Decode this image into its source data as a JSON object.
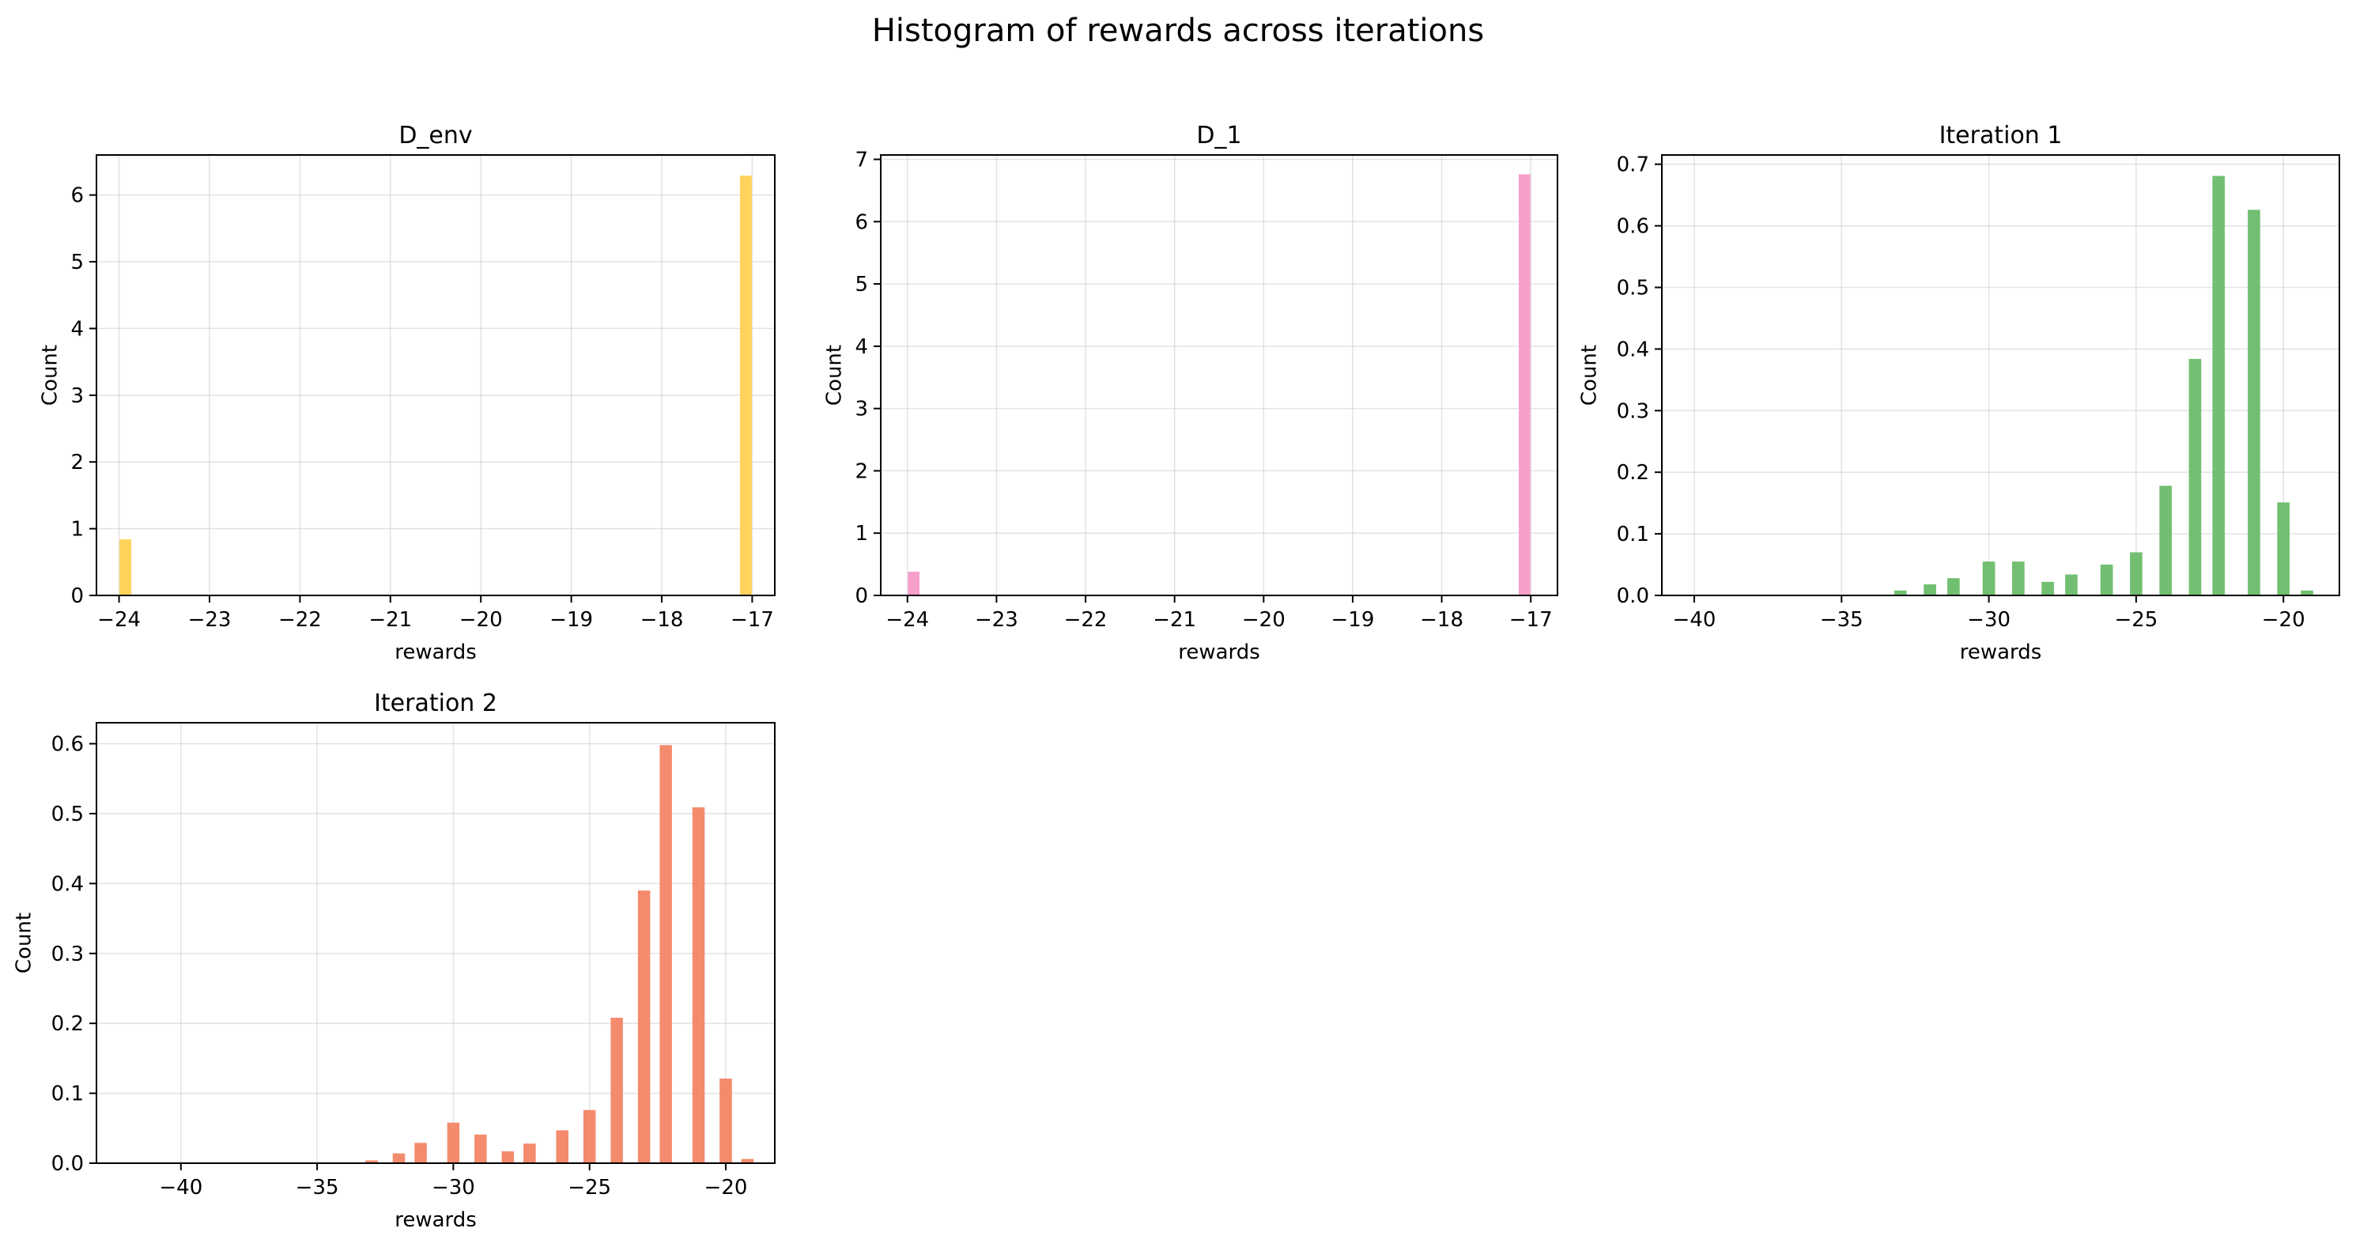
{
  "figure": {
    "suptitle": "Histogram of rewards across iterations"
  },
  "chart_data": [
    {
      "type": "bar",
      "title": "D_env",
      "xlabel": "rewards",
      "ylabel": "Count",
      "color": "#ffd35c",
      "xlim": [
        -24.25,
        -16.75
      ],
      "ylim": [
        0,
        6.6
      ],
      "xticks": [
        -24,
        -23,
        -22,
        -21,
        -20,
        -19,
        -18,
        -17
      ],
      "yticks": [
        0,
        1,
        2,
        3,
        4,
        5,
        6
      ],
      "bar_width": 0.13,
      "grid": true,
      "bars": [
        {
          "x": -23.93,
          "value": 0.84
        },
        {
          "x": -17.07,
          "value": 6.29
        }
      ]
    },
    {
      "type": "bar",
      "title": "D_1",
      "xlabel": "rewards",
      "ylabel": "Count",
      "color": "#f79fcb",
      "xlim": [
        -24.3,
        -16.7
      ],
      "ylim": [
        0,
        7.07
      ],
      "xticks": [
        -24,
        -23,
        -22,
        -21,
        -20,
        -19,
        -18,
        -17
      ],
      "yticks": [
        0,
        1,
        2,
        3,
        4,
        5,
        6,
        7
      ],
      "bar_width": 0.13,
      "grid": true,
      "bars": [
        {
          "x": -23.93,
          "value": 0.38
        },
        {
          "x": -17.07,
          "value": 6.76
        }
      ]
    },
    {
      "type": "bar",
      "title": "Iteration 1",
      "xlabel": "rewards",
      "ylabel": "Count",
      "color": "#72bf72",
      "xlim": [
        -41.1,
        -18.1
      ],
      "ylim": [
        0,
        0.715
      ],
      "xticks": [
        -40,
        -35,
        -30,
        -25,
        -20
      ],
      "yticks": [
        0,
        0.1,
        0.2,
        0.3,
        0.4,
        0.5,
        0.6,
        0.7
      ],
      "ytick_labels": [
        "0.0",
        "0.1",
        "0.2",
        "0.3",
        "0.4",
        "0.5",
        "0.6",
        "0.7"
      ],
      "bar_width": 0.42,
      "grid": true,
      "bars": [
        {
          "x": -33.0,
          "value": 0.008
        },
        {
          "x": -32.0,
          "value": 0.018
        },
        {
          "x": -31.2,
          "value": 0.028
        },
        {
          "x": -30.0,
          "value": 0.055
        },
        {
          "x": -29.0,
          "value": 0.055
        },
        {
          "x": -28.0,
          "value": 0.022
        },
        {
          "x": -27.2,
          "value": 0.034
        },
        {
          "x": -26.0,
          "value": 0.05
        },
        {
          "x": -25.0,
          "value": 0.07
        },
        {
          "x": -24.0,
          "value": 0.178
        },
        {
          "x": -23.0,
          "value": 0.384
        },
        {
          "x": -22.2,
          "value": 0.681
        },
        {
          "x": -21.0,
          "value": 0.626
        },
        {
          "x": -20.0,
          "value": 0.151
        },
        {
          "x": -19.2,
          "value": 0.008
        }
      ]
    },
    {
      "type": "bar",
      "title": "Iteration 2",
      "xlabel": "rewards",
      "ylabel": "Count",
      "color": "#f48b6d",
      "xlim": [
        -43.1,
        -18.2
      ],
      "ylim": [
        0,
        0.63
      ],
      "xticks": [
        -40,
        -35,
        -30,
        -25,
        -20
      ],
      "yticks": [
        0,
        0.1,
        0.2,
        0.3,
        0.4,
        0.5,
        0.6
      ],
      "ytick_labels": [
        "0.0",
        "0.1",
        "0.2",
        "0.3",
        "0.4",
        "0.5",
        "0.6"
      ],
      "bar_width": 0.45,
      "grid": true,
      "bars": [
        {
          "x": -33.0,
          "value": 0.004
        },
        {
          "x": -32.0,
          "value": 0.014
        },
        {
          "x": -31.2,
          "value": 0.029
        },
        {
          "x": -30.0,
          "value": 0.058
        },
        {
          "x": -29.0,
          "value": 0.041
        },
        {
          "x": -28.0,
          "value": 0.017
        },
        {
          "x": -27.2,
          "value": 0.028
        },
        {
          "x": -26.0,
          "value": 0.047
        },
        {
          "x": -25.0,
          "value": 0.076
        },
        {
          "x": -24.0,
          "value": 0.208
        },
        {
          "x": -23.0,
          "value": 0.39
        },
        {
          "x": -22.2,
          "value": 0.598
        },
        {
          "x": -21.0,
          "value": 0.509
        },
        {
          "x": -20.0,
          "value": 0.121
        },
        {
          "x": -19.2,
          "value": 0.006
        }
      ]
    }
  ]
}
